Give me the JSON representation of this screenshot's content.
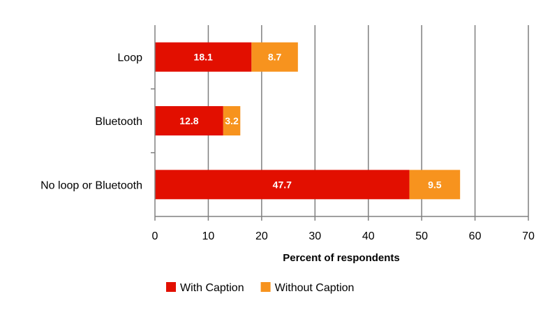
{
  "chart_data": {
    "type": "bar",
    "orientation": "horizontal",
    "stacked": true,
    "categories": [
      "Loop",
      "Bluetooth",
      "No loop or Bluetooth"
    ],
    "series": [
      {
        "name": "With Caption",
        "values": [
          18.1,
          12.8,
          47.7
        ],
        "color": "#e20f00"
      },
      {
        "name": "Without Caption",
        "values": [
          8.7,
          3.2,
          9.5
        ],
        "color": "#f7931e"
      }
    ],
    "xlabel": "Percent of respondents",
    "xlim": [
      0,
      70
    ],
    "xticks": [
      "0",
      "10",
      "20",
      "30",
      "40",
      "50",
      "60",
      "70"
    ],
    "grid": "vertical",
    "legend_position": "bottom"
  }
}
